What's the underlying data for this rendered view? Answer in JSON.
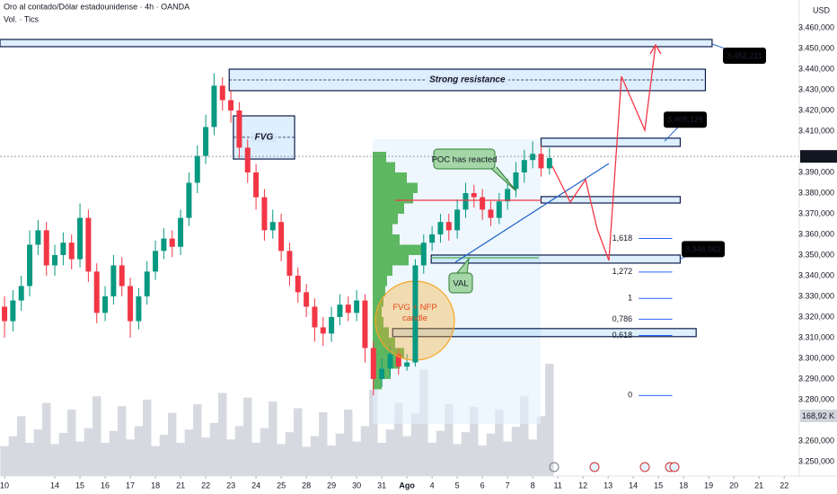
{
  "chart_data": {
    "type": "candlestick",
    "title": "Oro al contado/Dólar estadounidense · 4h · OANDA",
    "subtitle": "Vol. · Tics",
    "currency_label": "USD",
    "up_color": "#089981",
    "down_color": "#f23645",
    "x": [
      0,
      1,
      2,
      3,
      4,
      5,
      6,
      7,
      8,
      9,
      10,
      11,
      12,
      13,
      14,
      15,
      16,
      17,
      18,
      19,
      20,
      21,
      22,
      23,
      24,
      25,
      26,
      27,
      28,
      29,
      30,
      31,
      32,
      33,
      34,
      35,
      36,
      37,
      38,
      39,
      40,
      41,
      42,
      43,
      44,
      45,
      46,
      47,
      48,
      49,
      50,
      51,
      52,
      53,
      54,
      55,
      56,
      57,
      58,
      59,
      60,
      61,
      62,
      63,
      64,
      65
    ],
    "open": [
      3325,
      3318,
      3328,
      3335,
      3355,
      3362,
      3345,
      3350,
      3356,
      3348,
      3368,
      3342,
      3322,
      3330,
      3345,
      3335,
      3318,
      3330,
      3342,
      3352,
      3358,
      3354,
      3368,
      3385,
      3398,
      3412,
      3432,
      3425,
      3420,
      3402,
      3390,
      3378,
      3362,
      3366,
      3352,
      3340,
      3332,
      3325,
      3315,
      3312,
      3320,
      3326,
      3322,
      3328,
      3305,
      3290,
      3295,
      3302,
      3296,
      3298,
      3345,
      3356,
      3360,
      3366,
      3362,
      3372,
      3380,
      3378,
      3372,
      3368,
      3376,
      3382,
      3390,
      3396,
      3399,
      3392
    ],
    "high": [
      3330,
      3333,
      3340,
      3362,
      3367,
      3366,
      3355,
      3361,
      3360,
      3375,
      3372,
      3346,
      3335,
      3350,
      3349,
      3339,
      3334,
      3347,
      3357,
      3363,
      3362,
      3372,
      3390,
      3403,
      3418,
      3438,
      3436,
      3430,
      3424,
      3406,
      3394,
      3382,
      3372,
      3370,
      3356,
      3344,
      3336,
      3329,
      3320,
      3325,
      3331,
      3330,
      3333,
      3331,
      3308,
      3300,
      3306,
      3305,
      3302,
      3348,
      3360,
      3364,
      3370,
      3370,
      3377,
      3385,
      3384,
      3382,
      3376,
      3380,
      3387,
      3395,
      3401,
      3405,
      3403,
      3402
    ],
    "low": [
      3310,
      3313,
      3323,
      3330,
      3350,
      3340,
      3340,
      3345,
      3343,
      3344,
      3337,
      3317,
      3318,
      3326,
      3330,
      3310,
      3314,
      3326,
      3338,
      3348,
      3349,
      3350,
      3364,
      3380,
      3394,
      3408,
      3420,
      3414,
      3397,
      3385,
      3372,
      3357,
      3358,
      3347,
      3335,
      3327,
      3320,
      3308,
      3306,
      3308,
      3316,
      3318,
      3318,
      3298,
      3282,
      3286,
      3291,
      3292,
      3294,
      3296,
      3341,
      3352,
      3356,
      3357,
      3358,
      3368,
      3373,
      3367,
      3364,
      3365,
      3372,
      3378,
      3385,
      3392,
      3388,
      3389
    ],
    "close": [
      3318,
      3328,
      3335,
      3355,
      3362,
      3345,
      3350,
      3356,
      3348,
      3368,
      3342,
      3322,
      3330,
      3345,
      3335,
      3318,
      3330,
      3342,
      3352,
      3358,
      3354,
      3368,
      3385,
      3398,
      3412,
      3432,
      3425,
      3420,
      3402,
      3390,
      3378,
      3362,
      3366,
      3352,
      3340,
      3332,
      3325,
      3315,
      3312,
      3320,
      3326,
      3322,
      3328,
      3305,
      3290,
      3295,
      3302,
      3296,
      3298,
      3345,
      3356,
      3360,
      3366,
      3362,
      3372,
      3380,
      3378,
      3372,
      3368,
      3376,
      3382,
      3390,
      3396,
      3399,
      3392,
      3397
    ],
    "volume": {
      "color": "#c9ccd6",
      "values": [
        45,
        60,
        90,
        50,
        70,
        110,
        48,
        65,
        100,
        52,
        72,
        120,
        50,
        68,
        105,
        55,
        75,
        115,
        45,
        62,
        95,
        50,
        70,
        108,
        58,
        80,
        125,
        55,
        75,
        118,
        50,
        72,
        112,
        48,
        66,
        102,
        44,
        60,
        96,
        46,
        64,
        100,
        52,
        75,
        130,
        50,
        70,
        110,
        60,
        95,
        160,
        50,
        68,
        108,
        48,
        66,
        104,
        46,
        64,
        100,
        52,
        74,
        120,
        55,
        90,
        168.92
      ],
      "value_label": "168,92 K"
    },
    "xlim": [
      -0.54,
      94.8
    ],
    "ylim": [
      3243.0,
      3473.5
    ],
    "yticks": [
      {
        "value": 3460,
        "label": "3.460,000"
      },
      {
        "value": 3450,
        "label": "3.450,000"
      },
      {
        "value": 3440,
        "label": "3.440,000"
      },
      {
        "value": 3430,
        "label": "3.430,000"
      },
      {
        "value": 3420,
        "label": "3.420,000"
      },
      {
        "value": 3410,
        "label": "3.410,000"
      },
      {
        "value": 3390,
        "label": "3.390,000"
      },
      {
        "value": 3380,
        "label": "3.380,000"
      },
      {
        "value": 3370,
        "label": "3.370,000"
      },
      {
        "value": 3360,
        "label": "3.360,000"
      },
      {
        "value": 3350,
        "label": "3.350,000"
      },
      {
        "value": 3340,
        "label": "3.340,000"
      },
      {
        "value": 3330,
        "label": "3.330,000"
      },
      {
        "value": 3320,
        "label": "3.320,000"
      },
      {
        "value": 3310,
        "label": "3.310,000"
      },
      {
        "value": 3300,
        "label": "3.300,000"
      },
      {
        "value": 3290,
        "label": "3.290,000"
      },
      {
        "value": 3280,
        "label": "3.280,000"
      },
      {
        "value": 3260,
        "label": "3.260,000"
      },
      {
        "value": 3250,
        "label": "3.250,000"
      }
    ],
    "xticks": [
      {
        "value": 0,
        "label": "10"
      },
      {
        "value": 6,
        "label": "14"
      },
      {
        "value": 9,
        "label": "15"
      },
      {
        "value": 12,
        "label": "16"
      },
      {
        "value": 15,
        "label": "17"
      },
      {
        "value": 18,
        "label": "18"
      },
      {
        "value": 21,
        "label": "21"
      },
      {
        "value": 24,
        "label": "22"
      },
      {
        "value": 27,
        "label": "23"
      },
      {
        "value": 30,
        "label": "24"
      },
      {
        "value": 33,
        "label": "25"
      },
      {
        "value": 36,
        "label": "28"
      },
      {
        "value": 39,
        "label": "29"
      },
      {
        "value": 42,
        "label": "30"
      },
      {
        "value": 45,
        "label": "31"
      },
      {
        "value": 48,
        "label": "Ago"
      },
      {
        "value": 51,
        "label": "4"
      },
      {
        "value": 54,
        "label": "5"
      },
      {
        "value": 57,
        "label": "6"
      },
      {
        "value": 60,
        "label": "7"
      },
      {
        "value": 63,
        "label": "8"
      },
      {
        "value": 66,
        "label": "11"
      },
      {
        "value": 69,
        "label": "12"
      },
      {
        "value": 72,
        "label": "13"
      },
      {
        "value": 75,
        "label": "14"
      },
      {
        "value": 78,
        "label": "15"
      },
      {
        "value": 81,
        "label": "18"
      },
      {
        "value": 84,
        "label": "19"
      },
      {
        "value": 87,
        "label": "20"
      },
      {
        "value": 90,
        "label": "21"
      },
      {
        "value": 93,
        "label": "22"
      }
    ],
    "last_price": {
      "value": 3397.765,
      "label": "3.397,765"
    },
    "zones": [
      {
        "xlim": [
          -0.54,
          84.4
        ],
        "ylim": [
          3450.9,
          3454.4
        ]
      },
      {
        "xlim": [
          26.8,
          83.6
        ],
        "ylim": [
          3429.6,
          3440.0
        ],
        "mid": 3434.8,
        "label": "Strong resistance"
      },
      {
        "xlim": [
          27.3,
          34.6
        ],
        "ylim": [
          3396.5,
          3417.4
        ],
        "mid": 3407.0,
        "label": "FVG"
      },
      {
        "xlim": [
          64.0,
          80.6
        ],
        "ylim": [
          3402.6,
          3406.6
        ]
      },
      {
        "xlim": [
          64.0,
          80.6
        ],
        "ylim": [
          3375.2,
          3378.3
        ]
      },
      {
        "xlim": [
          50.9,
          80.6
        ],
        "ylim": [
          3346.1,
          3350.0
        ]
      },
      {
        "xlim": [
          46.3,
          82.5
        ],
        "ylim": [
          3310.5,
          3314.4
        ]
      }
    ],
    "price_labels": [
      {
        "value": 3452.211,
        "label": "3.452,211"
      },
      {
        "value": 3405.126,
        "label": "3.405,126"
      },
      {
        "value": 3348.062,
        "label": "3.348,062"
      }
    ],
    "fib": {
      "price_0": 3282,
      "price_1": 3329,
      "xlim": [
        75,
        79
      ],
      "color": "#2962ff",
      "levels": [
        {
          "value": 1.618,
          "label": "1,618"
        },
        {
          "value": 1.272,
          "label": "1,272"
        },
        1,
        {
          "value": 0.786,
          "label": "0,786"
        },
        {
          "value": 0.618,
          "label": "0,618"
        },
        0
      ]
    },
    "profile": {
      "color": "#4caf50",
      "bins": [
        3285,
        3290,
        3295,
        3300,
        3305,
        3310,
        3315,
        3320,
        3325,
        3330,
        3335,
        3340,
        3345,
        3350,
        3355,
        3360,
        3365,
        3370,
        3375,
        3380,
        3385,
        3390,
        3395,
        3400
      ],
      "values": [
        10,
        20,
        30,
        35,
        25,
        18,
        12,
        10,
        12,
        14,
        16,
        22,
        40,
        55,
        30,
        22,
        28,
        35,
        45,
        50,
        38,
        25,
        15
      ]
    },
    "notes": [
      "POC has reacted",
      "VAL",
      "FVG + NFP candle"
    ]
  }
}
